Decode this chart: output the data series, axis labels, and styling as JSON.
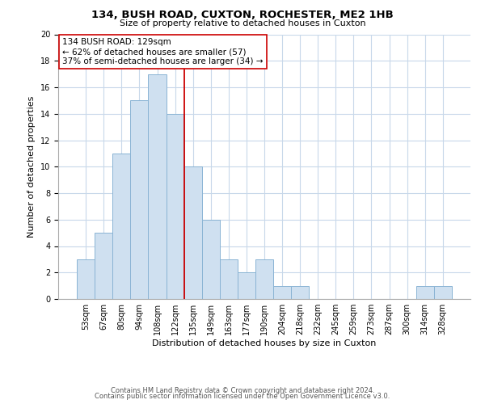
{
  "title": "134, BUSH ROAD, CUXTON, ROCHESTER, ME2 1HB",
  "subtitle": "Size of property relative to detached houses in Cuxton",
  "xlabel": "Distribution of detached houses by size in Cuxton",
  "ylabel": "Number of detached properties",
  "bar_labels": [
    "53sqm",
    "67sqm",
    "80sqm",
    "94sqm",
    "108sqm",
    "122sqm",
    "135sqm",
    "149sqm",
    "163sqm",
    "177sqm",
    "190sqm",
    "204sqm",
    "218sqm",
    "232sqm",
    "245sqm",
    "259sqm",
    "273sqm",
    "287sqm",
    "300sqm",
    "314sqm",
    "328sqm"
  ],
  "bar_values": [
    3,
    5,
    11,
    15,
    17,
    14,
    10,
    6,
    3,
    2,
    3,
    1,
    1,
    0,
    0,
    0,
    0,
    0,
    0,
    1,
    1
  ],
  "bar_color": "#cfe0f0",
  "bar_edge_color": "#8ab4d4",
  "reference_line_color": "#cc0000",
  "reference_line_x": 5.5,
  "ylim": [
    0,
    20
  ],
  "yticks": [
    0,
    2,
    4,
    6,
    8,
    10,
    12,
    14,
    16,
    18,
    20
  ],
  "annotation_title": "134 BUSH ROAD: 129sqm",
  "annotation_line1": "← 62% of detached houses are smaller (57)",
  "annotation_line2": "37% of semi-detached houses are larger (34) →",
  "annotation_box_color": "#ffffff",
  "annotation_box_edge": "#cc0000",
  "footer1": "Contains HM Land Registry data © Crown copyright and database right 2024.",
  "footer2": "Contains public sector information licensed under the Open Government Licence v3.0.",
  "background_color": "#ffffff",
  "grid_color": "#c8d8ea",
  "title_fontsize": 9.5,
  "subtitle_fontsize": 8,
  "axis_label_fontsize": 8,
  "tick_fontsize": 7,
  "annotation_fontsize": 7.5,
  "footer_fontsize": 6
}
